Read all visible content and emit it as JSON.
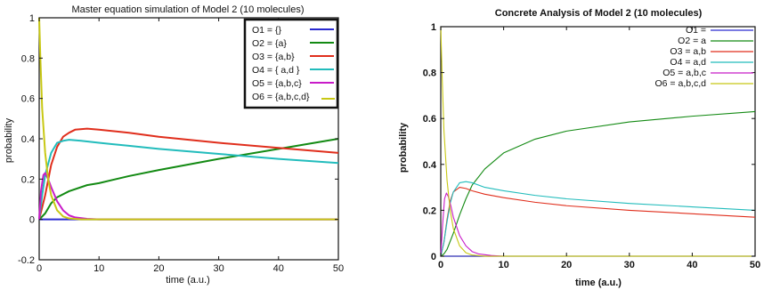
{
  "chart_data": [
    {
      "type": "line",
      "title": "Master equation simulation of Model 2 (10 molecules)",
      "xlabel": "time (a.u.)",
      "ylabel": "probability",
      "xlim": [
        0,
        50
      ],
      "ylim": [
        -0.2,
        1
      ],
      "xticks": [
        "0",
        "10",
        "20",
        "30",
        "40",
        "50"
      ],
      "yticks": [
        "-0.2",
        "0",
        "0.2",
        "0.4",
        "0.6",
        "0.8",
        "1"
      ],
      "grid": false,
      "legend": "top-right",
      "series": [
        {
          "name": "O1 = {}",
          "color": "#2a2ad0",
          "x": [
            0,
            10,
            20,
            30,
            40,
            50
          ],
          "y": [
            0,
            0,
            0,
            0,
            0,
            0
          ]
        },
        {
          "name": "O2 = {a}",
          "color": "#138a13",
          "x": [
            0,
            1,
            2,
            3,
            5,
            8,
            10,
            15,
            20,
            30,
            40,
            50
          ],
          "y": [
            0,
            0.03,
            0.08,
            0.11,
            0.14,
            0.17,
            0.18,
            0.215,
            0.245,
            0.3,
            0.35,
            0.4
          ]
        },
        {
          "name": "O3 = {a,b}",
          "color": "#e02e1c",
          "x": [
            0,
            1,
            2,
            3,
            4,
            5,
            6,
            8,
            10,
            15,
            20,
            30,
            40,
            50
          ],
          "y": [
            0,
            0.12,
            0.27,
            0.36,
            0.41,
            0.43,
            0.445,
            0.45,
            0.445,
            0.43,
            0.41,
            0.38,
            0.355,
            0.33
          ]
        },
        {
          "name": "O4 = { a,d }",
          "color": "#22bcbc",
          "x": [
            0,
            0.5,
            1,
            2,
            3,
            4,
            5,
            7,
            10,
            15,
            20,
            30,
            40,
            50
          ],
          "y": [
            0,
            0.12,
            0.22,
            0.33,
            0.38,
            0.39,
            0.395,
            0.39,
            0.38,
            0.365,
            0.35,
            0.325,
            0.3,
            0.28
          ]
        },
        {
          "name": "O5 = {a,b,c}",
          "color": "#c81cc8",
          "x": [
            0,
            0.3,
            0.7,
            1,
            1.5,
            2,
            3,
            4,
            5,
            6,
            8,
            10,
            20,
            50
          ],
          "y": [
            0,
            0.14,
            0.22,
            0.23,
            0.2,
            0.16,
            0.09,
            0.045,
            0.02,
            0.01,
            0.003,
            0,
            0,
            0
          ]
        },
        {
          "name": "O6 = {a,b,c,d}",
          "color": "#c8c814",
          "x": [
            0,
            0.2,
            0.5,
            1,
            1.5,
            2,
            3,
            4,
            5,
            7,
            10,
            20,
            50
          ],
          "y": [
            1,
            0.8,
            0.55,
            0.33,
            0.2,
            0.12,
            0.045,
            0.015,
            0.005,
            0,
            0,
            0,
            0
          ]
        }
      ]
    },
    {
      "type": "line",
      "title": "Concrete Analysis of Model 2 (10 molecules)",
      "xlabel": "time (a.u.)",
      "ylabel": "probability",
      "xlim": [
        0,
        50
      ],
      "ylim": [
        0,
        1
      ],
      "xticks": [
        "0",
        "10",
        "20",
        "30",
        "40",
        "50"
      ],
      "yticks": [
        "0",
        "0.2",
        "0.4",
        "0.6",
        "0.8",
        "1"
      ],
      "grid": false,
      "legend": "top-right",
      "series": [
        {
          "name": "O1 =",
          "color": "#2a2ad0",
          "x": [
            0,
            10,
            20,
            30,
            40,
            50
          ],
          "y": [
            0,
            0,
            0,
            0,
            0,
            0
          ]
        },
        {
          "name": "O2 = a",
          "color": "#138a13",
          "x": [
            0,
            0.5,
            1,
            2,
            3,
            4,
            5,
            7,
            10,
            15,
            20,
            30,
            40,
            50
          ],
          "y": [
            0,
            0.01,
            0.03,
            0.1,
            0.18,
            0.25,
            0.31,
            0.38,
            0.45,
            0.51,
            0.545,
            0.585,
            0.61,
            0.63
          ]
        },
        {
          "name": "O3 = a,b",
          "color": "#e02e1c",
          "x": [
            0,
            0.5,
            1,
            1.5,
            2,
            3,
            4,
            5,
            7,
            10,
            15,
            20,
            30,
            40,
            50
          ],
          "y": [
            0,
            0.06,
            0.16,
            0.24,
            0.28,
            0.3,
            0.295,
            0.285,
            0.27,
            0.255,
            0.235,
            0.22,
            0.2,
            0.185,
            0.17
          ]
        },
        {
          "name": "O4 = a,d",
          "color": "#22bcbc",
          "x": [
            0,
            0.5,
            1,
            1.5,
            2,
            3,
            4,
            5,
            7,
            10,
            15,
            20,
            30,
            40,
            50
          ],
          "y": [
            0,
            0.06,
            0.15,
            0.23,
            0.28,
            0.32,
            0.325,
            0.32,
            0.3,
            0.285,
            0.265,
            0.25,
            0.23,
            0.215,
            0.2
          ]
        },
        {
          "name": "O5 = a,b,c",
          "color": "#c81cc8",
          "x": [
            0,
            0.3,
            0.6,
            0.9,
            1.2,
            1.6,
            2,
            3,
            4,
            5,
            6,
            8,
            10,
            20,
            50
          ],
          "y": [
            0,
            0.14,
            0.25,
            0.275,
            0.26,
            0.22,
            0.17,
            0.09,
            0.045,
            0.02,
            0.01,
            0.003,
            0,
            0,
            0
          ]
        },
        {
          "name": "O6 = a,b,c,d",
          "color": "#c8c814",
          "x": [
            0,
            0.2,
            0.5,
            1,
            1.5,
            2,
            3,
            4,
            5,
            7,
            10,
            20,
            50
          ],
          "y": [
            1,
            0.8,
            0.55,
            0.33,
            0.2,
            0.12,
            0.045,
            0.015,
            0.005,
            0,
            0,
            0,
            0
          ]
        }
      ]
    }
  ]
}
